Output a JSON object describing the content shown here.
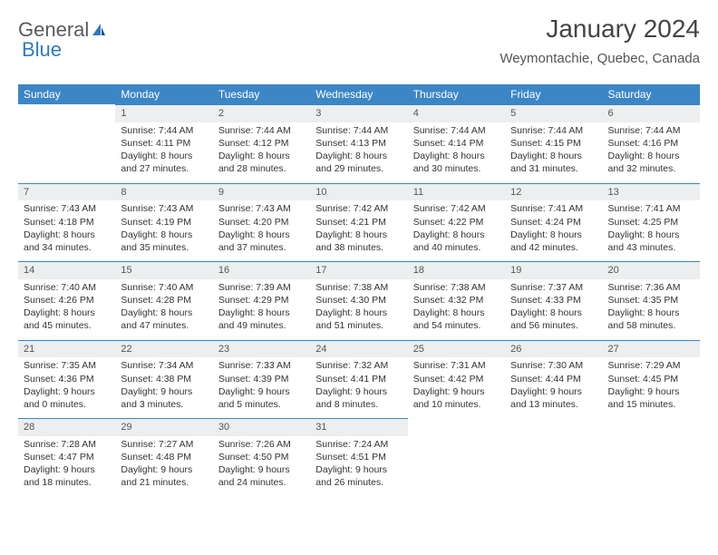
{
  "logo": {
    "text1": "General",
    "text2": "Blue"
  },
  "title": "January 2024",
  "location": "Weymontachie, Quebec, Canada",
  "colors": {
    "header_bg": "#3d86c6",
    "header_text": "#ffffff",
    "daynum_bg": "#eceeef",
    "row_divider": "#3d86c6",
    "body_text": "#333333",
    "logo_grey": "#5a5a5a",
    "logo_blue": "#2f7abf"
  },
  "fonts": {
    "title_size_pt": 21,
    "location_size_pt": 11,
    "header_cell_size_pt": 9,
    "body_size_pt": 8
  },
  "daysOfWeek": [
    "Sunday",
    "Monday",
    "Tuesday",
    "Wednesday",
    "Thursday",
    "Friday",
    "Saturday"
  ],
  "weeks": [
    [
      null,
      {
        "d": "1",
        "sr": "Sunrise: 7:44 AM",
        "ss": "Sunset: 4:11 PM",
        "dl1": "Daylight: 8 hours",
        "dl2": "and 27 minutes."
      },
      {
        "d": "2",
        "sr": "Sunrise: 7:44 AM",
        "ss": "Sunset: 4:12 PM",
        "dl1": "Daylight: 8 hours",
        "dl2": "and 28 minutes."
      },
      {
        "d": "3",
        "sr": "Sunrise: 7:44 AM",
        "ss": "Sunset: 4:13 PM",
        "dl1": "Daylight: 8 hours",
        "dl2": "and 29 minutes."
      },
      {
        "d": "4",
        "sr": "Sunrise: 7:44 AM",
        "ss": "Sunset: 4:14 PM",
        "dl1": "Daylight: 8 hours",
        "dl2": "and 30 minutes."
      },
      {
        "d": "5",
        "sr": "Sunrise: 7:44 AM",
        "ss": "Sunset: 4:15 PM",
        "dl1": "Daylight: 8 hours",
        "dl2": "and 31 minutes."
      },
      {
        "d": "6",
        "sr": "Sunrise: 7:44 AM",
        "ss": "Sunset: 4:16 PM",
        "dl1": "Daylight: 8 hours",
        "dl2": "and 32 minutes."
      }
    ],
    [
      {
        "d": "7",
        "sr": "Sunrise: 7:43 AM",
        "ss": "Sunset: 4:18 PM",
        "dl1": "Daylight: 8 hours",
        "dl2": "and 34 minutes."
      },
      {
        "d": "8",
        "sr": "Sunrise: 7:43 AM",
        "ss": "Sunset: 4:19 PM",
        "dl1": "Daylight: 8 hours",
        "dl2": "and 35 minutes."
      },
      {
        "d": "9",
        "sr": "Sunrise: 7:43 AM",
        "ss": "Sunset: 4:20 PM",
        "dl1": "Daylight: 8 hours",
        "dl2": "and 37 minutes."
      },
      {
        "d": "10",
        "sr": "Sunrise: 7:42 AM",
        "ss": "Sunset: 4:21 PM",
        "dl1": "Daylight: 8 hours",
        "dl2": "and 38 minutes."
      },
      {
        "d": "11",
        "sr": "Sunrise: 7:42 AM",
        "ss": "Sunset: 4:22 PM",
        "dl1": "Daylight: 8 hours",
        "dl2": "and 40 minutes."
      },
      {
        "d": "12",
        "sr": "Sunrise: 7:41 AM",
        "ss": "Sunset: 4:24 PM",
        "dl1": "Daylight: 8 hours",
        "dl2": "and 42 minutes."
      },
      {
        "d": "13",
        "sr": "Sunrise: 7:41 AM",
        "ss": "Sunset: 4:25 PM",
        "dl1": "Daylight: 8 hours",
        "dl2": "and 43 minutes."
      }
    ],
    [
      {
        "d": "14",
        "sr": "Sunrise: 7:40 AM",
        "ss": "Sunset: 4:26 PM",
        "dl1": "Daylight: 8 hours",
        "dl2": "and 45 minutes."
      },
      {
        "d": "15",
        "sr": "Sunrise: 7:40 AM",
        "ss": "Sunset: 4:28 PM",
        "dl1": "Daylight: 8 hours",
        "dl2": "and 47 minutes."
      },
      {
        "d": "16",
        "sr": "Sunrise: 7:39 AM",
        "ss": "Sunset: 4:29 PM",
        "dl1": "Daylight: 8 hours",
        "dl2": "and 49 minutes."
      },
      {
        "d": "17",
        "sr": "Sunrise: 7:38 AM",
        "ss": "Sunset: 4:30 PM",
        "dl1": "Daylight: 8 hours",
        "dl2": "and 51 minutes."
      },
      {
        "d": "18",
        "sr": "Sunrise: 7:38 AM",
        "ss": "Sunset: 4:32 PM",
        "dl1": "Daylight: 8 hours",
        "dl2": "and 54 minutes."
      },
      {
        "d": "19",
        "sr": "Sunrise: 7:37 AM",
        "ss": "Sunset: 4:33 PM",
        "dl1": "Daylight: 8 hours",
        "dl2": "and 56 minutes."
      },
      {
        "d": "20",
        "sr": "Sunrise: 7:36 AM",
        "ss": "Sunset: 4:35 PM",
        "dl1": "Daylight: 8 hours",
        "dl2": "and 58 minutes."
      }
    ],
    [
      {
        "d": "21",
        "sr": "Sunrise: 7:35 AM",
        "ss": "Sunset: 4:36 PM",
        "dl1": "Daylight: 9 hours",
        "dl2": "and 0 minutes."
      },
      {
        "d": "22",
        "sr": "Sunrise: 7:34 AM",
        "ss": "Sunset: 4:38 PM",
        "dl1": "Daylight: 9 hours",
        "dl2": "and 3 minutes."
      },
      {
        "d": "23",
        "sr": "Sunrise: 7:33 AM",
        "ss": "Sunset: 4:39 PM",
        "dl1": "Daylight: 9 hours",
        "dl2": "and 5 minutes."
      },
      {
        "d": "24",
        "sr": "Sunrise: 7:32 AM",
        "ss": "Sunset: 4:41 PM",
        "dl1": "Daylight: 9 hours",
        "dl2": "and 8 minutes."
      },
      {
        "d": "25",
        "sr": "Sunrise: 7:31 AM",
        "ss": "Sunset: 4:42 PM",
        "dl1": "Daylight: 9 hours",
        "dl2": "and 10 minutes."
      },
      {
        "d": "26",
        "sr": "Sunrise: 7:30 AM",
        "ss": "Sunset: 4:44 PM",
        "dl1": "Daylight: 9 hours",
        "dl2": "and 13 minutes."
      },
      {
        "d": "27",
        "sr": "Sunrise: 7:29 AM",
        "ss": "Sunset: 4:45 PM",
        "dl1": "Daylight: 9 hours",
        "dl2": "and 15 minutes."
      }
    ],
    [
      {
        "d": "28",
        "sr": "Sunrise: 7:28 AM",
        "ss": "Sunset: 4:47 PM",
        "dl1": "Daylight: 9 hours",
        "dl2": "and 18 minutes."
      },
      {
        "d": "29",
        "sr": "Sunrise: 7:27 AM",
        "ss": "Sunset: 4:48 PM",
        "dl1": "Daylight: 9 hours",
        "dl2": "and 21 minutes."
      },
      {
        "d": "30",
        "sr": "Sunrise: 7:26 AM",
        "ss": "Sunset: 4:50 PM",
        "dl1": "Daylight: 9 hours",
        "dl2": "and 24 minutes."
      },
      {
        "d": "31",
        "sr": "Sunrise: 7:24 AM",
        "ss": "Sunset: 4:51 PM",
        "dl1": "Daylight: 9 hours",
        "dl2": "and 26 minutes."
      },
      null,
      null,
      null
    ]
  ]
}
